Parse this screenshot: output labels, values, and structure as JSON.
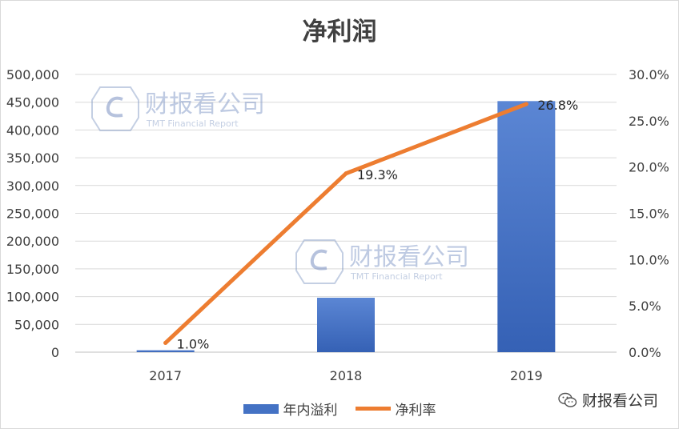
{
  "chart_data": {
    "type": "bar",
    "title": "净利润",
    "categories": [
      "2017",
      "2018",
      "2019"
    ],
    "series": [
      {
        "name": "年内溢利",
        "type": "bar",
        "axis": "left",
        "values": [
          3500,
          98000,
          452000
        ],
        "color": "#4472c4"
      },
      {
        "name": "净利率",
        "type": "line",
        "axis": "right",
        "values": [
          1.0,
          19.3,
          26.8
        ],
        "labels": [
          "1.0%",
          "19.3%",
          "26.8%"
        ],
        "color": "#ed7d31"
      }
    ],
    "y_left": {
      "ylim": [
        0,
        500000
      ],
      "ticks": [
        "0",
        "50,000",
        "100,000",
        "150,000",
        "200,000",
        "250,000",
        "300,000",
        "350,000",
        "400,000",
        "450,000",
        "500,000"
      ]
    },
    "y_right": {
      "ylim": [
        0,
        30
      ],
      "ticks": [
        "0.0%",
        "5.0%",
        "10.0%",
        "15.0%",
        "20.0%",
        "25.0%",
        "30.0%"
      ]
    },
    "grid": true,
    "legend": "bottom"
  },
  "watermark": {
    "name": "财报看公司",
    "subtitle": "TMT Financial Report"
  },
  "wechat_source": {
    "label": "财报看公司"
  }
}
